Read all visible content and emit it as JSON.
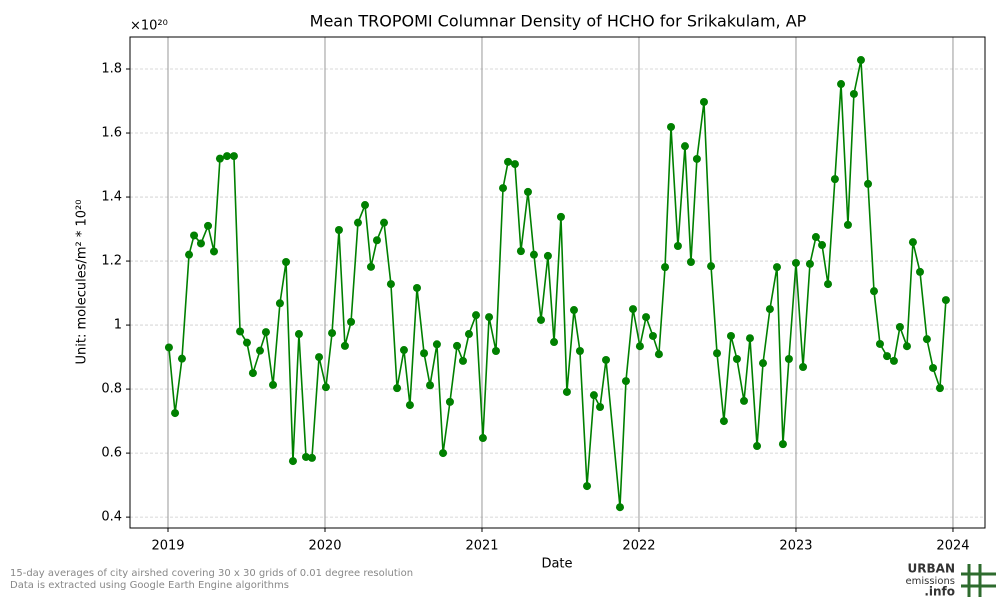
{
  "chart_data": {
    "type": "line",
    "title": "Mean TROPOMI Columnar Density of HCHO for Srikakulam, AP",
    "xlabel": "Date",
    "ylabel": "Unit: molecules/m² * 10²⁰",
    "y_multiplier": "×10²⁰",
    "color": "#008000",
    "grid": true,
    "xlim": [
      2018.758,
      2024.204
    ],
    "xticks": [
      2019,
      2020,
      2021,
      2022,
      2023,
      2024
    ],
    "ylim": [
      0.366,
      1.9
    ],
    "yticks": [
      0.4,
      0.6,
      0.8,
      1.0,
      1.2,
      1.4,
      1.6,
      1.8
    ],
    "x": [
      2019.006,
      2019.045,
      2019.089,
      2019.134,
      2019.166,
      2019.21,
      2019.255,
      2019.293,
      2019.331,
      2019.376,
      2019.42,
      2019.459,
      2019.503,
      2019.541,
      2019.586,
      2019.624,
      2019.669,
      2019.713,
      2019.752,
      2019.796,
      2019.834,
      2019.879,
      2019.917,
      2019.962,
      2020.006,
      2020.045,
      2020.089,
      2020.127,
      2020.166,
      2020.21,
      2020.255,
      2020.293,
      2020.331,
      2020.376,
      2020.42,
      2020.459,
      2020.503,
      2020.541,
      2020.586,
      2020.631,
      2020.669,
      2020.713,
      2020.752,
      2020.796,
      2020.841,
      2020.879,
      2020.917,
      2020.962,
      2021.006,
      2021.045,
      2021.089,
      2021.134,
      2021.166,
      2021.21,
      2021.248,
      2021.293,
      2021.331,
      2021.376,
      2021.42,
      2021.459,
      2021.503,
      2021.541,
      2021.586,
      2021.624,
      2021.669,
      2021.713,
      2021.752,
      2021.79,
      2021.879,
      2021.917,
      2021.962,
      2022.006,
      2022.045,
      2022.089,
      2022.127,
      2022.166,
      2022.204,
      2022.248,
      2022.293,
      2022.331,
      2022.369,
      2022.414,
      2022.459,
      2022.497,
      2022.541,
      2022.586,
      2022.624,
      2022.669,
      2022.707,
      2022.752,
      2022.79,
      2022.834,
      2022.879,
      2022.917,
      2022.955,
      2023.0,
      2023.045,
      2023.089,
      2023.127,
      2023.166,
      2023.204,
      2023.248,
      2023.287,
      2023.331,
      2023.369,
      2023.414,
      2023.459,
      2023.497,
      2023.535,
      2023.58,
      2023.624,
      2023.662,
      2023.707,
      2023.745,
      2023.79,
      2023.834,
      2023.873,
      2023.917,
      2023.955
    ],
    "values": [
      0.93,
      0.725,
      0.895,
      1.22,
      1.28,
      1.255,
      1.31,
      1.23,
      1.52,
      1.528,
      1.528,
      0.98,
      0.945,
      0.85,
      0.92,
      0.978,
      0.813,
      1.068,
      1.197,
      0.575,
      0.972,
      0.588,
      0.585,
      0.9,
      0.806,
      0.975,
      1.297,
      0.935,
      1.01,
      1.32,
      1.375,
      1.182,
      1.265,
      1.32,
      1.128,
      0.803,
      0.922,
      0.75,
      1.116,
      0.912,
      0.812,
      0.94,
      0.6,
      0.76,
      0.935,
      0.888,
      0.972,
      1.031,
      0.647,
      1.025,
      0.919,
      1.428,
      1.51,
      1.503,
      1.231,
      1.416,
      1.22,
      1.016,
      1.216,
      0.947,
      1.338,
      0.791,
      1.047,
      0.919,
      0.497,
      0.781,
      0.744,
      0.891,
      0.431,
      0.825,
      1.05,
      0.934,
      1.025,
      0.966,
      0.909,
      1.181,
      1.619,
      1.247,
      1.559,
      1.197,
      1.519,
      1.697,
      1.184,
      0.912,
      0.7,
      0.966,
      0.894,
      0.763,
      0.959,
      0.622,
      0.881,
      1.05,
      1.181,
      0.628,
      0.894,
      1.194,
      0.869,
      1.191,
      1.275,
      1.25,
      1.128,
      1.456,
      1.753,
      1.313,
      1.722,
      1.828,
      1.441,
      1.106,
      0.941,
      0.903,
      0.888,
      0.994,
      0.934,
      1.259,
      1.166,
      0.956,
      0.866,
      0.803,
      1.078
    ]
  },
  "footer": {
    "notes": [
      "15-day averages of city airshed covering 30 x 30 grids of 0.01 degree resolution",
      "Data is extracted using Google Earth Engine algorithms"
    ],
    "logo": [
      "URBAN",
      "emissions",
      ".info"
    ]
  }
}
